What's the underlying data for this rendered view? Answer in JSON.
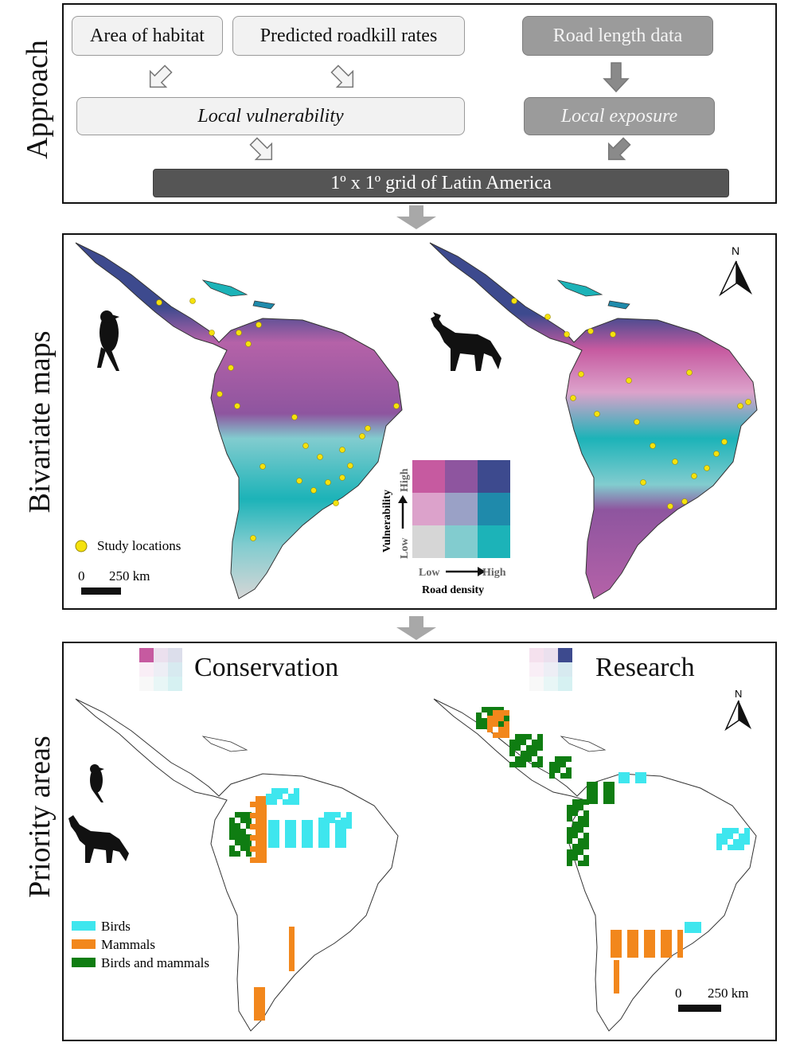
{
  "approach": {
    "side_label": "Approach",
    "inputs": [
      "Area of habitat",
      "Predicted roadkill rates",
      "Road length data"
    ],
    "vulnerability": "Local vulnerability",
    "exposure": "Local exposure",
    "grid": "1º x 1º grid of Latin America"
  },
  "bivariate": {
    "side_label": "Bivariate maps",
    "study_locations": "Study locations",
    "scale_zero": "0",
    "scale_km": "250 km",
    "north": "N",
    "y_axis": "Vulnerability",
    "y_low": "Low",
    "y_high": "High",
    "x_low": "Low",
    "x_high": "High",
    "x_axis": "Road density",
    "palette": [
      "#c65aa0",
      "#8e559f",
      "#3d4a8e",
      "#dca2cb",
      "#9aa1c6",
      "#1f8aab",
      "#d6d6d6",
      "#82cccf",
      "#1cb3b8"
    ]
  },
  "priority": {
    "side_label": "Priority areas",
    "conservation": "Conservation",
    "research": "Research",
    "north": "N",
    "legend": [
      "Birds",
      "Mammals",
      "Birds and mammals"
    ],
    "colors": {
      "birds": "#3ee6ee",
      "mammals": "#f2871c",
      "both": "#0f7d12"
    },
    "scale_zero": "0",
    "scale_km": "250 km"
  }
}
